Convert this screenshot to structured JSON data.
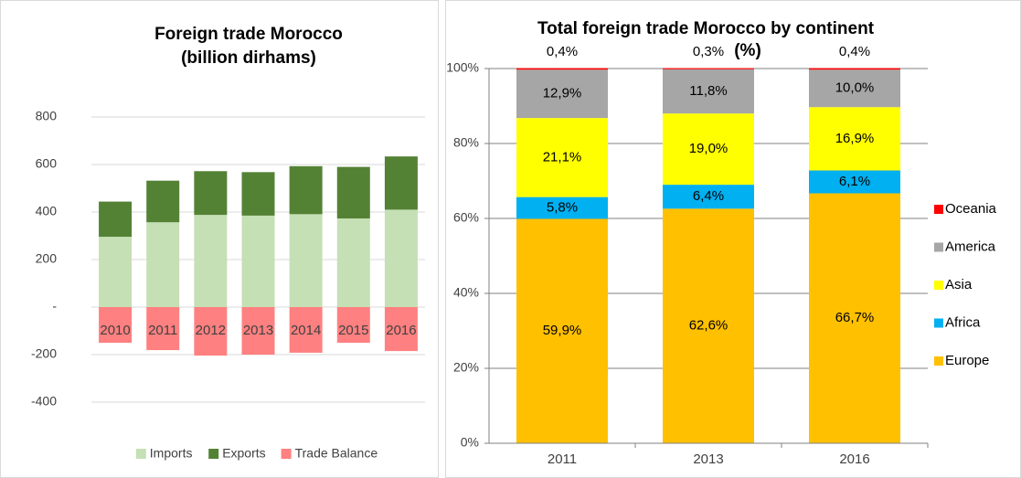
{
  "chart_data": [
    {
      "type": "bar",
      "stacked": true,
      "title": [
        "Foreign trade Morocco",
        "(billion dirhams)"
      ],
      "categories": [
        "2010",
        "2011",
        "2012",
        "2013",
        "2014",
        "2015",
        "2016"
      ],
      "series": [
        {
          "name": "Imports",
          "color": "#c5e0b4",
          "values": [
            296,
            357,
            388,
            385,
            391,
            373,
            410
          ]
        },
        {
          "name": "Exports",
          "color": "#548235",
          "values": [
            148,
            175,
            184,
            183,
            202,
            217,
            224
          ]
        },
        {
          "name": "Trade Balance",
          "color": "#ff8080",
          "values": [
            -150,
            -181,
            -204,
            -200,
            -192,
            -150,
            -185
          ]
        }
      ],
      "ylim": [
        -600,
        1000
      ],
      "yticks": [
        -400,
        -200,
        {
          "value": 0,
          "label": "-"
        },
        200,
        400,
        600,
        800
      ],
      "grid": true,
      "legend": "bottom"
    },
    {
      "type": "bar",
      "stacked": true,
      "title": [
        "Total foreign trade Morocco by continent",
        "(%)"
      ],
      "categories": [
        "2011",
        "2013",
        "2016"
      ],
      "series": [
        {
          "name": "Europe",
          "color": "#ffc000",
          "values": [
            59.9,
            62.6,
            66.7
          ],
          "value_labels": [
            "59,9%",
            "62,6%",
            "66,7%"
          ]
        },
        {
          "name": "Africa",
          "color": "#00b0f0",
          "values": [
            5.8,
            6.4,
            6.1
          ],
          "value_labels": [
            "5,8%",
            "6,4%",
            "6,1%"
          ]
        },
        {
          "name": "Asia",
          "color": "#ffff00",
          "values": [
            21.1,
            19.0,
            16.9
          ],
          "value_labels": [
            "21,1%",
            "19,0%",
            "16,9%"
          ]
        },
        {
          "name": "America",
          "color": "#a6a6a6",
          "values": [
            12.9,
            11.8,
            10.0
          ],
          "value_labels": [
            "12,9%",
            "11,8%",
            "10,0%"
          ]
        },
        {
          "name": "Oceania",
          "color": "#ff0000",
          "values": [
            0.4,
            0.3,
            0.4
          ],
          "value_labels": [
            "0,4%",
            "0,3%",
            "0,4%"
          ]
        }
      ],
      "ylim": [
        0,
        100
      ],
      "yticks": [
        {
          "value": 0,
          "label": "0%"
        },
        {
          "value": 20,
          "label": "20%"
        },
        {
          "value": 40,
          "label": "40%"
        },
        {
          "value": 60,
          "label": "60%"
        },
        {
          "value": 80,
          "label": "80%"
        },
        {
          "value": 100,
          "label": "100%"
        }
      ],
      "grid": true,
      "legend": "right"
    }
  ]
}
